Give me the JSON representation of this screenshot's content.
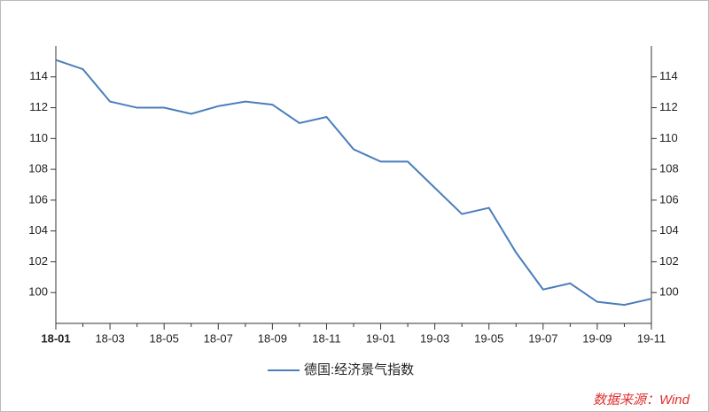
{
  "chart_data": {
    "type": "line",
    "categories": [
      "18-01",
      null,
      "18-03",
      null,
      "18-05",
      null,
      "18-07",
      null,
      "18-09",
      null,
      "18-11",
      null,
      "19-01",
      null,
      "19-03",
      null,
      "19-05",
      null,
      "19-07",
      null,
      "19-09",
      null,
      "19-11"
    ],
    "series": [
      {
        "name": "德国:经济景气指数",
        "color": "#4a7ebb",
        "values": [
          115.1,
          114.5,
          112.4,
          112.0,
          112.0,
          111.6,
          112.1,
          112.4,
          112.2,
          111.0,
          111.4,
          109.3,
          108.5,
          108.5,
          106.8,
          105.1,
          105.5,
          102.6,
          100.2,
          100.6,
          99.4,
          99.2,
          99.6
        ]
      }
    ],
    "ylim": [
      98,
      116
    ],
    "yticks": [
      100,
      102,
      104,
      106,
      108,
      110,
      112,
      114
    ],
    "y2lim": [
      98,
      116
    ],
    "y2ticks": [
      100,
      102,
      104,
      106,
      108,
      110,
      112,
      114
    ],
    "legend": "bottom",
    "source": "数据来源：Wind"
  }
}
